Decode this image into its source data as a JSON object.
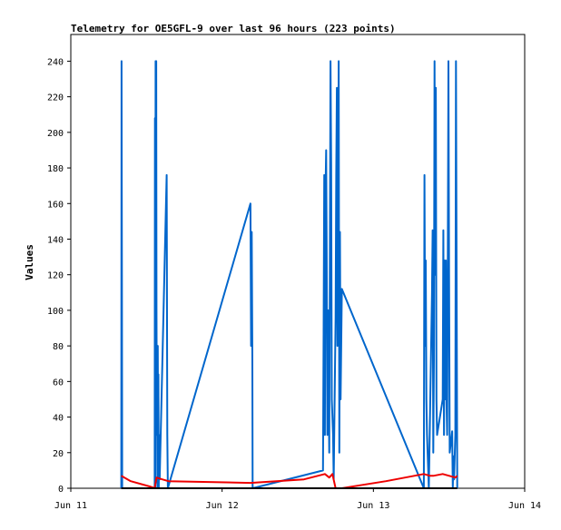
{
  "chart_data": {
    "type": "line",
    "title": "Telemetry for OE5GFL-9 over last 96 hours (223 points)",
    "xlabel": "",
    "ylabel": "Values",
    "ylim": [
      0,
      255
    ],
    "yticks": [
      0,
      20,
      40,
      60,
      80,
      100,
      120,
      140,
      160,
      180,
      200,
      220,
      240
    ],
    "xlim_hours": [
      0,
      72
    ],
    "xticks": [
      {
        "label": "Jun 11",
        "hour": 0
      },
      {
        "label": "Jun 12",
        "hour": 24
      },
      {
        "label": "Jun 13",
        "hour": 48
      },
      {
        "label": "Jun 14",
        "hour": 72
      }
    ],
    "grid": false,
    "legend": "none",
    "series": [
      {
        "color": "#0066cc",
        "points": [
          [
            8.0,
            0
          ],
          [
            8.05,
            240
          ],
          [
            8.1,
            120
          ],
          [
            8.15,
            0
          ],
          [
            13.3,
            0
          ],
          [
            13.35,
            208
          ],
          [
            13.4,
            0
          ],
          [
            13.45,
            240
          ],
          [
            13.5,
            150
          ],
          [
            13.55,
            240
          ],
          [
            13.6,
            100
          ],
          [
            13.65,
            30
          ],
          [
            13.7,
            60
          ],
          [
            13.75,
            0
          ],
          [
            13.8,
            80
          ],
          [
            13.85,
            10
          ],
          [
            13.9,
            64
          ],
          [
            13.95,
            0
          ],
          [
            14.0,
            30
          ],
          [
            14.1,
            5
          ],
          [
            15.2,
            176
          ],
          [
            15.3,
            30
          ],
          [
            15.4,
            0
          ],
          [
            28.5,
            160
          ],
          [
            28.6,
            80
          ],
          [
            28.7,
            144
          ],
          [
            28.8,
            72
          ],
          [
            28.85,
            0
          ],
          [
            40.0,
            10
          ],
          [
            40.1,
            88
          ],
          [
            40.2,
            176
          ],
          [
            40.3,
            30
          ],
          [
            40.4,
            168
          ],
          [
            40.5,
            190
          ],
          [
            40.6,
            130
          ],
          [
            40.7,
            30
          ],
          [
            40.8,
            100
          ],
          [
            41.0,
            20
          ],
          [
            41.2,
            240
          ],
          [
            41.3,
            183
          ],
          [
            41.4,
            50
          ],
          [
            41.6,
            30
          ],
          [
            41.7,
            5
          ],
          [
            42.0,
            96
          ],
          [
            42.1,
            176
          ],
          [
            42.2,
            225
          ],
          [
            42.3,
            80
          ],
          [
            42.4,
            112
          ],
          [
            42.5,
            240
          ],
          [
            42.6,
            20
          ],
          [
            42.7,
            144
          ],
          [
            42.8,
            50
          ],
          [
            43.0,
            112
          ],
          [
            56.0,
            0
          ],
          [
            56.1,
            176
          ],
          [
            56.2,
            80
          ],
          [
            56.3,
            128
          ],
          [
            56.4,
            50
          ],
          [
            56.5,
            30
          ],
          [
            56.6,
            20
          ],
          [
            56.8,
            0
          ],
          [
            57.3,
            110
          ],
          [
            57.4,
            145
          ],
          [
            57.5,
            20
          ],
          [
            57.6,
            72
          ],
          [
            57.7,
            240
          ],
          [
            57.8,
            120
          ],
          [
            57.9,
            225
          ],
          [
            58.0,
            50
          ],
          [
            58.1,
            30
          ],
          [
            59.0,
            50
          ],
          [
            59.1,
            145
          ],
          [
            59.2,
            30
          ],
          [
            59.3,
            128
          ],
          [
            59.4,
            50
          ],
          [
            59.5,
            128
          ],
          [
            59.6,
            48
          ],
          [
            59.7,
            30
          ],
          [
            59.8,
            128
          ],
          [
            59.9,
            240
          ],
          [
            60.0,
            120
          ],
          [
            60.1,
            20
          ],
          [
            60.5,
            32
          ],
          [
            60.6,
            0
          ],
          [
            60.7,
            18
          ],
          [
            60.8,
            5
          ],
          [
            61.0,
            30
          ],
          [
            61.1,
            240
          ],
          [
            61.2,
            120
          ],
          [
            61.3,
            0
          ]
        ]
      },
      {
        "color": "#ee0000",
        "points": [
          [
            8.0,
            7
          ],
          [
            8.5,
            6
          ],
          [
            9.5,
            4
          ],
          [
            12.5,
            1
          ],
          [
            13.3,
            0
          ],
          [
            13.6,
            6
          ],
          [
            14.5,
            5
          ],
          [
            15.5,
            4
          ],
          [
            28.5,
            3
          ],
          [
            37.0,
            5
          ],
          [
            40.3,
            8
          ],
          [
            41.0,
            6
          ],
          [
            41.5,
            8
          ],
          [
            42.0,
            0
          ],
          [
            43.0,
            0
          ],
          [
            50.0,
            4
          ],
          [
            56.0,
            8
          ],
          [
            57.0,
            7
          ],
          [
            57.5,
            7
          ],
          [
            59.0,
            8
          ],
          [
            61.0,
            6
          ],
          [
            61.3,
            7
          ]
        ]
      },
      {
        "color": "#000000",
        "points": [
          [
            8.0,
            0
          ],
          [
            61.3,
            0
          ]
        ]
      }
    ]
  }
}
